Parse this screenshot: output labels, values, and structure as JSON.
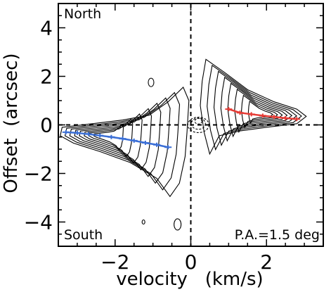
{
  "chart_data": {
    "type": "contour",
    "xlabel": "velocity   (km/s)",
    "ylabel": "Offset  (arcsec)",
    "xlim": [
      -3.5,
      3.5
    ],
    "ylim": [
      -5,
      5
    ],
    "xticks": [
      -2,
      0,
      2
    ],
    "xtick_labels": [
      "−2",
      "0",
      "2"
    ],
    "yticks": [
      -4,
      -2,
      0,
      2,
      4
    ],
    "ytick_labels": [
      "−4",
      "−2",
      "0",
      "2",
      "4"
    ],
    "annotations": {
      "top_left": "North",
      "bottom_left": "South",
      "bottom_right": "P.A.=1.5 deg"
    },
    "reference_lines": {
      "x": 0,
      "y": 0,
      "style": "dashed"
    },
    "contour_levels": 8,
    "series": [
      {
        "color": "#3b6fd6",
        "marker": "+ with error bars",
        "x": [
          -3.3,
          -3.0,
          -2.7,
          -2.4,
          -2.1,
          -1.8,
          -1.5,
          -1.2,
          -0.9,
          -0.6
        ],
        "y": [
          -0.3,
          -0.33,
          -0.38,
          -0.44,
          -0.5,
          -0.57,
          -0.65,
          -0.74,
          -0.82,
          -0.92
        ]
      },
      {
        "color": "#e63b35",
        "marker": "+ with error bars",
        "x": [
          1.0,
          1.3,
          1.6,
          1.9,
          2.2,
          2.5,
          2.8
        ],
        "y": [
          0.65,
          0.5,
          0.44,
          0.38,
          0.33,
          0.28,
          0.24
        ]
      }
    ]
  }
}
